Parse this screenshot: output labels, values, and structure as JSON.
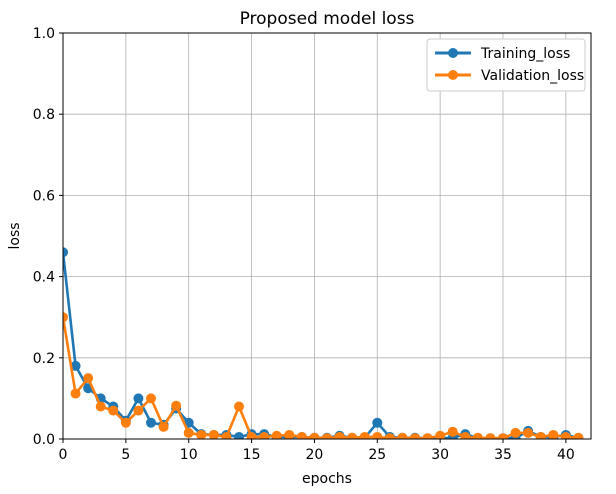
{
  "chart_data": {
    "type": "line",
    "title": "Proposed model loss",
    "xlabel": "epochs",
    "ylabel": "loss",
    "xlim": [
      0,
      42
    ],
    "ylim": [
      0,
      1.0
    ],
    "xticks": [
      0,
      5,
      10,
      15,
      20,
      25,
      30,
      35,
      40
    ],
    "xtick_labels": [
      "0",
      "5",
      "10",
      "15",
      "20",
      "25",
      "30",
      "35",
      "40"
    ],
    "yticks": [
      0,
      0.2,
      0.4,
      0.6,
      0.8,
      1.0
    ],
    "ytick_labels": [
      "0.0",
      "0.2",
      "0.4",
      "0.6",
      "0.8",
      "1.0"
    ],
    "grid": true,
    "legend_position": "top-right",
    "x": [
      0,
      1,
      2,
      3,
      4,
      5,
      6,
      7,
      8,
      9,
      10,
      11,
      12,
      13,
      14,
      15,
      16,
      17,
      18,
      19,
      20,
      21,
      22,
      23,
      24,
      25,
      26,
      27,
      28,
      29,
      30,
      31,
      32,
      33,
      34,
      35,
      36,
      37,
      38,
      39,
      40,
      41
    ],
    "series": [
      {
        "name": "Training_loss",
        "color": "#1f77b4",
        "values": [
          0.46,
          0.18,
          0.125,
          0.1,
          0.08,
          0.045,
          0.1,
          0.04,
          0.035,
          0.075,
          0.04,
          0.012,
          0.01,
          0.01,
          0.005,
          0.012,
          0.012,
          0.005,
          0.005,
          0.005,
          0.003,
          0.003,
          0.008,
          0.003,
          0.003,
          0.04,
          0.005,
          0.003,
          0.003,
          0.002,
          0.002,
          0.003,
          0.012,
          0.002,
          0.002,
          0.002,
          0.002,
          0.02,
          0.005,
          0.005,
          0.01,
          0.002
        ]
      },
      {
        "name": "Validation_loss",
        "color": "#ff7f0e",
        "values": [
          0.3,
          0.112,
          0.15,
          0.08,
          0.07,
          0.04,
          0.07,
          0.1,
          0.03,
          0.082,
          0.015,
          0.01,
          0.01,
          0.005,
          0.08,
          0.005,
          0.005,
          0.008,
          0.01,
          0.005,
          0.003,
          0.002,
          0.005,
          0.003,
          0.005,
          0.005,
          0.002,
          0.003,
          0.002,
          0.002,
          0.008,
          0.018,
          0.005,
          0.003,
          0.002,
          0.002,
          0.015,
          0.015,
          0.005,
          0.01,
          0.005,
          0.003
        ]
      }
    ]
  }
}
